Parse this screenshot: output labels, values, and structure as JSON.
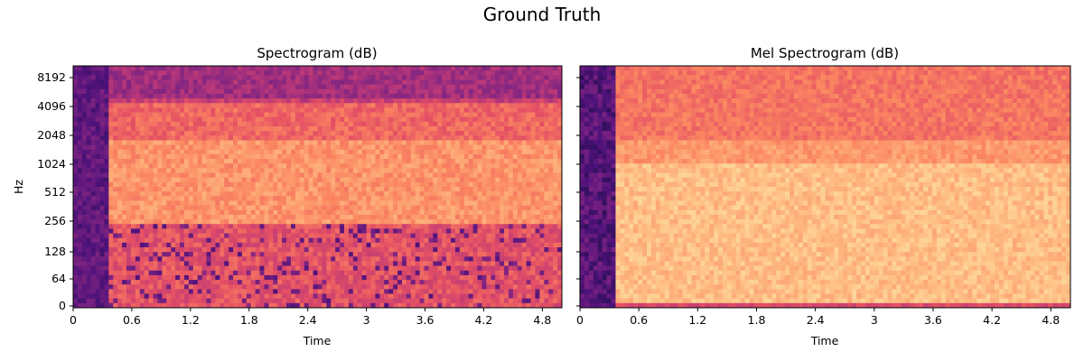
{
  "figure": {
    "title": "Ground Truth"
  },
  "chart_data": [
    {
      "type": "heatmap",
      "title": "Spectrogram (dB)",
      "xlabel": "Time",
      "ylabel": "Hz",
      "x_ticks": [
        "0",
        "0.6",
        "1.2",
        "1.8",
        "2.4",
        "3",
        "3.6",
        "4.2",
        "4.8"
      ],
      "x_tick_values": [
        0,
        0.6,
        1.2,
        1.8,
        2.4,
        3,
        3.6,
        4.2,
        4.8
      ],
      "xlim": [
        0,
        5.0
      ],
      "y_ticks": [
        "0",
        "64",
        "128",
        "256",
        "512",
        "1024",
        "2048",
        "4096",
        "8192"
      ],
      "y_scale": "symlog",
      "colormap": "magma",
      "y_ticklabels_visible": true
    },
    {
      "type": "heatmap",
      "title": "Mel Spectrogram (dB)",
      "xlabel": "Time",
      "ylabel": "",
      "x_ticks": [
        "0",
        "0.6",
        "1.2",
        "1.8",
        "2.4",
        "3",
        "3.6",
        "4.2",
        "4.8"
      ],
      "x_tick_values": [
        0,
        0.6,
        1.2,
        1.8,
        2.4,
        3,
        3.6,
        4.2,
        4.8
      ],
      "xlim": [
        0,
        5.0
      ],
      "y_ticks": [
        "0",
        "64",
        "128",
        "256",
        "512",
        "1024",
        "2048",
        "4096",
        "8192"
      ],
      "y_scale": "symlog",
      "colormap": "magma",
      "y_ticklabels_visible": false
    }
  ]
}
